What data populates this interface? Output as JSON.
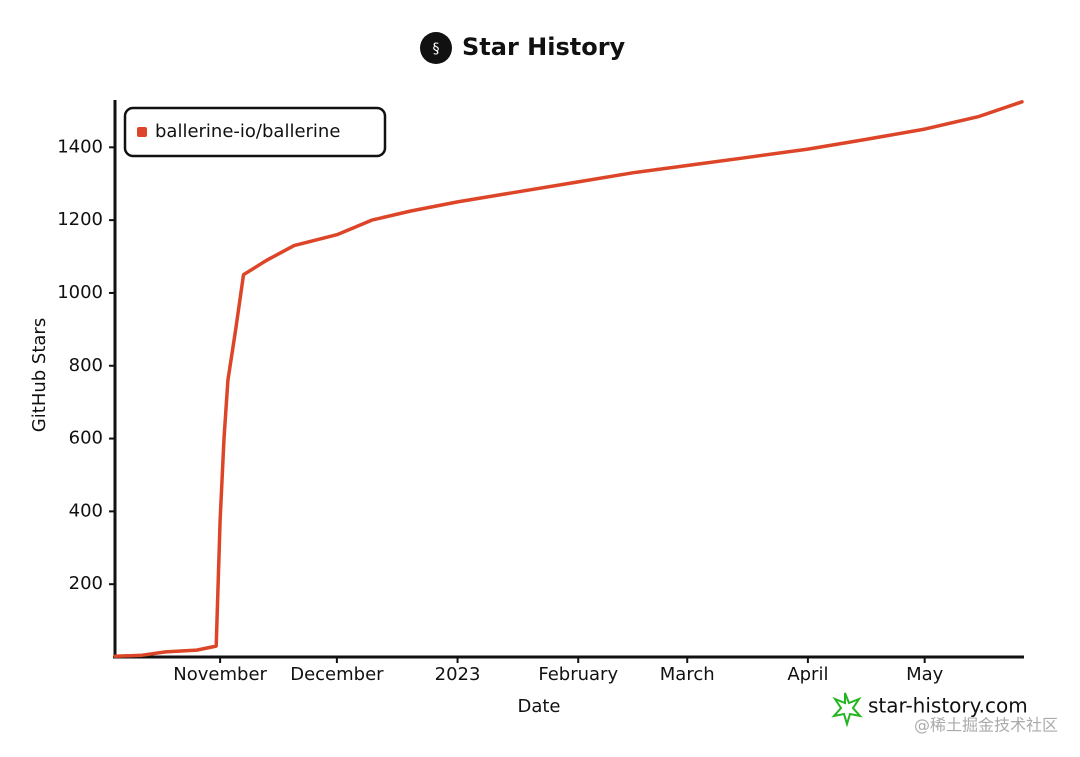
{
  "chart_data": {
    "type": "line",
    "title": "Star History",
    "x_label": "Date",
    "y_label": "GitHub Stars",
    "x": [
      "2022-10-05",
      "2022-10-12",
      "2022-10-18",
      "2022-10-26",
      "2022-10-31",
      "2022-11-01",
      "2022-11-02",
      "2022-11-03",
      "2022-11-05",
      "2022-11-07",
      "2022-11-13",
      "2022-11-20",
      "2022-12-01",
      "2022-12-10",
      "2022-12-20",
      "2023-01-01",
      "2023-01-15",
      "2023-02-01",
      "2023-02-15",
      "2023-03-01",
      "2023-03-15",
      "2023-04-01",
      "2023-04-15",
      "2023-05-01",
      "2023-05-15",
      "2023-05-26"
    ],
    "series": [
      {
        "name": "ballerine-io/ballerine",
        "color": "#dd4528",
        "values": [
          2,
          5,
          14,
          19,
          30,
          375,
          600,
          760,
          900,
          1050,
          1090,
          1130,
          1160,
          1200,
          1225,
          1250,
          1275,
          1305,
          1330,
          1350,
          1370,
          1395,
          1420,
          1450,
          1485,
          1525
        ]
      }
    ],
    "xlim": [
      "2022-10-05",
      "2023-05-26"
    ],
    "xticks": [
      {
        "value": "2022-11-01",
        "label": "November"
      },
      {
        "value": "2022-12-01",
        "label": "December"
      },
      {
        "value": "2023-01-01",
        "label": "2023"
      },
      {
        "value": "2023-02-01",
        "label": "February"
      },
      {
        "value": "2023-03-01",
        "label": "March"
      },
      {
        "value": "2023-04-01",
        "label": "April"
      },
      {
        "value": "2023-05-01",
        "label": "May"
      }
    ],
    "ylim": [
      0,
      1530
    ],
    "yticks": [
      200,
      400,
      600,
      800,
      1000,
      1200,
      1400
    ],
    "grid": false,
    "legend": "top-left",
    "annotations": [
      "star-history.com",
      "@稀土掘金技术社区"
    ]
  }
}
